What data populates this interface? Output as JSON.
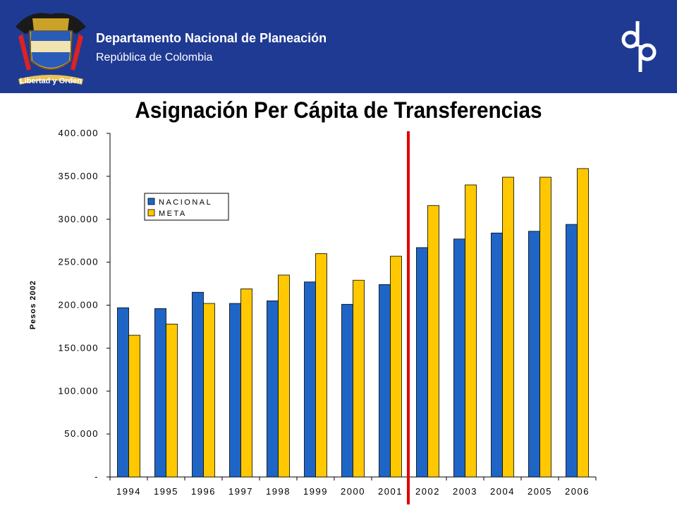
{
  "header": {
    "org_name": "Departamento Nacional de Planeación",
    "country": "República de Colombia",
    "crest_motto": "Libertad y Orden",
    "background_color": "#1f3a93"
  },
  "chart_data": {
    "type": "bar",
    "title": "Asignación Per Cápita de Transferencias",
    "xlabel": "",
    "ylabel": "Pesos 2002",
    "categories": [
      "1994",
      "1995",
      "1996",
      "1997",
      "1998",
      "1999",
      "2000",
      "2001",
      "2002",
      "2003",
      "2004",
      "2005",
      "2006"
    ],
    "series": [
      {
        "name": "NACIONAL",
        "color": "#1f65c6",
        "values": [
          197000,
          196000,
          215000,
          202000,
          205000,
          227000,
          201000,
          224000,
          267000,
          277000,
          284000,
          286000,
          294000
        ]
      },
      {
        "name": "META",
        "color": "#ffc800",
        "values": [
          165000,
          178000,
          202000,
          219000,
          235000,
          260000,
          229000,
          257000,
          316000,
          340000,
          349000,
          349000,
          359000
        ]
      }
    ],
    "ylim": [
      0,
      400000
    ],
    "yticks": [
      0,
      50000,
      100000,
      150000,
      200000,
      250000,
      300000,
      350000,
      400000
    ],
    "ytick_labels": [
      "-",
      "50.000",
      "100.000",
      "150.000",
      "200.000",
      "250.000",
      "300.000",
      "350.000",
      "400.000"
    ],
    "legend_labels": [
      "NACIONAL",
      "META"
    ],
    "legend_position": "top-left",
    "divider_after_category": "2001",
    "divider_color": "#e00000",
    "grid": false
  }
}
